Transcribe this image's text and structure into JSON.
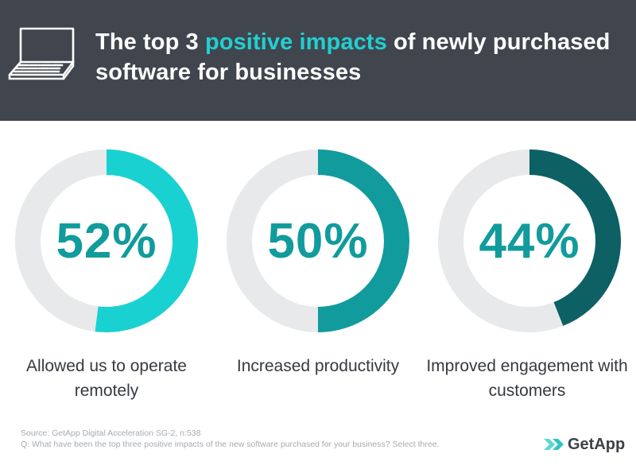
{
  "header": {
    "title_start": "The top 3 ",
    "title_accent": "positive impacts",
    "title_end": " of newly purchased software for businesses",
    "icon": "laptop-icon"
  },
  "chart_data": {
    "type": "donut",
    "title": "The top 3 positive impacts of newly purchased software for businesses",
    "categories": [
      "Allowed us to operate remotely",
      "Increased productivity",
      "Improved engagement with customers"
    ],
    "values": [
      52,
      50,
      44
    ],
    "labels": [
      "52%",
      "50%",
      "44%"
    ],
    "unit": "%",
    "max": 100,
    "colors": [
      "#1ad1d1",
      "#119b9c",
      "#0d6064"
    ],
    "track_color": "#e8e9ea",
    "text_colors": [
      "#119b9c",
      "#119b9c",
      "#119b9c"
    ]
  },
  "footer": {
    "source": "Source: GetApp Digital Acceleration SG-2, n:538",
    "question": "Q: What have been the top three positive impacts of the new software purchased for your business? Select three.",
    "logo_text": "GetApp",
    "logo_icon": "getapp-chevrons-icon"
  }
}
